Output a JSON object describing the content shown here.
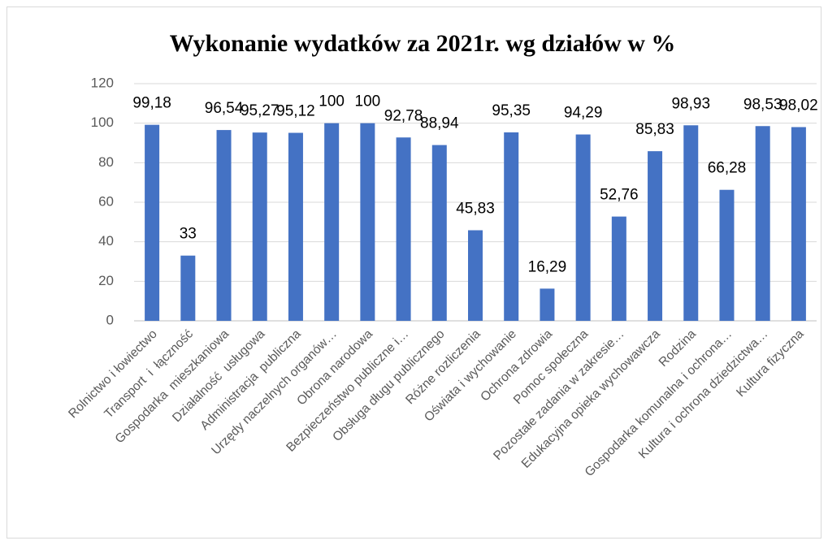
{
  "chart_data": {
    "type": "bar",
    "title": "Wykonanie wydatków za 2021r. wg działów w %",
    "categories": [
      "Rolnictwo i łowiectwo",
      "Transport  i  łączność",
      "Gospodarka  mieszkaniowa",
      "Działalność  usługowa",
      "Administracja  publiczna",
      "Urzędy naczelnych organów…",
      "Obrona narodowa",
      "Bezpieczeństwo publiczne i…",
      "Obsługa długu publicznego",
      "Różne rozliczenia",
      "Oświata i wychowanie",
      "Ochrona zdrowia",
      "Pomoc społeczna",
      "Pozostałe zadania w zakresie…",
      "Edukacyjna opieka wychowawcza",
      "Rodzina",
      "Gospodarka komunalna i ochrona…",
      "Kultura i ochrona dziedzictwa…",
      "Kultura fizyczna"
    ],
    "values": [
      99.18,
      33,
      96.54,
      95.27,
      95.12,
      100,
      100,
      92.78,
      88.94,
      45.83,
      95.35,
      16.29,
      94.29,
      52.76,
      85.83,
      98.93,
      66.28,
      98.53,
      98.02
    ],
    "value_labels": [
      "99,18",
      "33",
      "96,54",
      "95,27",
      "95,12",
      "100",
      "100",
      "92,78",
      "88,94",
      "45,83",
      "95,35",
      "16,29",
      "94,29",
      "52,76",
      "85,83",
      "98,93",
      "66,28",
      "98,53",
      "98,02"
    ],
    "color": "#4472c4",
    "ylim": [
      0,
      120
    ],
    "yticks": [
      0,
      20,
      40,
      60,
      80,
      100,
      120
    ],
    "grid": true
  }
}
